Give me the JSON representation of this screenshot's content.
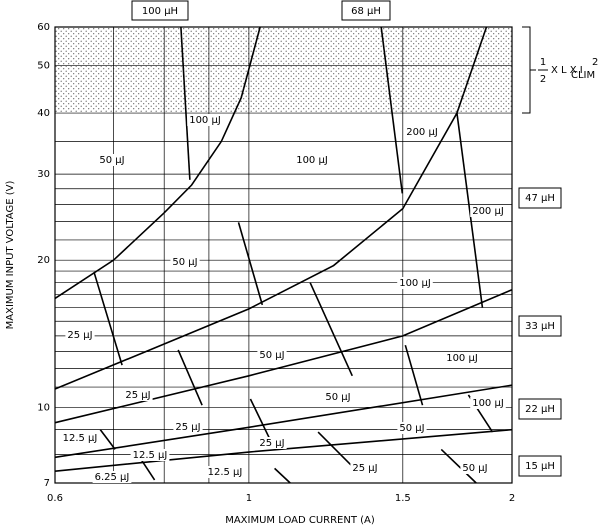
{
  "chart_data": {
    "type": "line",
    "xscale": "log",
    "yscale": "log",
    "x_label": "MAXIMUM LOAD CURRENT (A)",
    "y_label": "MAXIMUM INPUT VOLTAGE (V)",
    "xlim": [
      0.6,
      2
    ],
    "ylim": [
      7,
      60
    ],
    "xticks": [
      0.6,
      1,
      1.5,
      2
    ],
    "yticks": [
      7,
      10,
      20,
      30,
      40,
      50,
      60
    ],
    "minor_xticks": [
      0.7,
      0.8,
      0.9
    ],
    "minor_yticks": [
      8,
      9,
      11,
      12,
      13,
      14,
      15,
      16,
      17,
      18,
      19,
      22,
      24,
      26,
      28,
      35
    ],
    "grid": true,
    "color": "#000000",
    "shaded_region": [
      40,
      60
    ],
    "top_labels": [
      "100 µH",
      "68 µH"
    ],
    "inductor_labels": [
      "47 µH",
      "33 µH",
      "22 µH",
      "15 µH"
    ],
    "formula": {
      "numerator": "1",
      "denominator": "2",
      "text": "X L X I",
      "subscript": "CLIM",
      "superscript": "2"
    },
    "annotations": [
      "50 µJ",
      "100 µJ",
      "100 µJ",
      "200 µJ",
      "200 µJ",
      "50 µJ",
      "100 µJ",
      "25 µJ",
      "50 µJ",
      "100 µJ",
      "25 µJ",
      "50 µJ",
      "100 µJ",
      "25 µJ",
      "50 µJ",
      "12.5 µJ",
      "25 µJ",
      "12.5 µJ",
      "12.5 µJ",
      "25 µJ",
      "50 µJ",
      "6.25 µJ"
    ],
    "boundaries": [
      {
        "x": [
          0.6,
          0.7,
          0.8,
          0.86,
          0.93,
          0.98,
          1.03
        ],
        "y": [
          16.7,
          20,
          25,
          28.5,
          35,
          43,
          60
        ]
      },
      {
        "x": [
          0.6,
          0.77,
          1,
          1.25,
          1.5,
          1.73,
          1.87
        ],
        "y": [
          10.9,
          13.1,
          15.9,
          19.5,
          25.5,
          40,
          60
        ]
      },
      {
        "x": [
          0.6,
          1,
          1.5,
          2
        ],
        "y": [
          9.3,
          11.6,
          14,
          17.4
        ]
      },
      {
        "x": [
          0.6,
          1,
          2
        ],
        "y": [
          7.9,
          9.1,
          11.1
        ]
      },
      {
        "x": [
          0.6,
          1,
          2
        ],
        "y": [
          7.4,
          8.1,
          9
        ]
      }
    ],
    "segments": [
      {
        "x": [
          0.836,
          0.856
        ],
        "y": [
          60,
          29.2
        ]
      },
      {
        "x": [
          0.973,
          1.036
        ],
        "y": [
          23.9,
          16.2
        ]
      },
      {
        "x": [
          1.417,
          1.498
        ],
        "y": [
          60,
          27.4
        ]
      },
      {
        "x": [
          1.73,
          1.85
        ],
        "y": [
          40,
          16
        ]
      },
      {
        "x": [
          0.665,
          0.716
        ],
        "y": [
          18.9,
          12.2
        ]
      },
      {
        "x": [
          0.83,
          0.884
        ],
        "y": [
          13.1,
          10.1
        ]
      },
      {
        "x": [
          1.175,
          1.313
        ],
        "y": [
          18,
          11.6
        ]
      },
      {
        "x": [
          1.51,
          1.58
        ],
        "y": [
          13.4,
          10.1
        ]
      },
      {
        "x": [
          1.004,
          1.058
        ],
        "y": [
          10.4,
          8.57
        ]
      },
      {
        "x": [
          1.2,
          1.32
        ],
        "y": [
          8.9,
          7.5
        ]
      },
      {
        "x": [
          1.783,
          1.9
        ],
        "y": [
          10.6,
          8.9
        ]
      },
      {
        "x": [
          0.676,
          0.703
        ],
        "y": [
          9,
          8.2
        ]
      },
      {
        "x": [
          0.75,
          0.78
        ],
        "y": [
          7.9,
          7.1
        ]
      },
      {
        "x": [
          1.07,
          1.115
        ],
        "y": [
          7.5,
          7
        ]
      },
      {
        "x": [
          1.66,
          1.82
        ],
        "y": [
          8.2,
          7
        ]
      }
    ]
  }
}
